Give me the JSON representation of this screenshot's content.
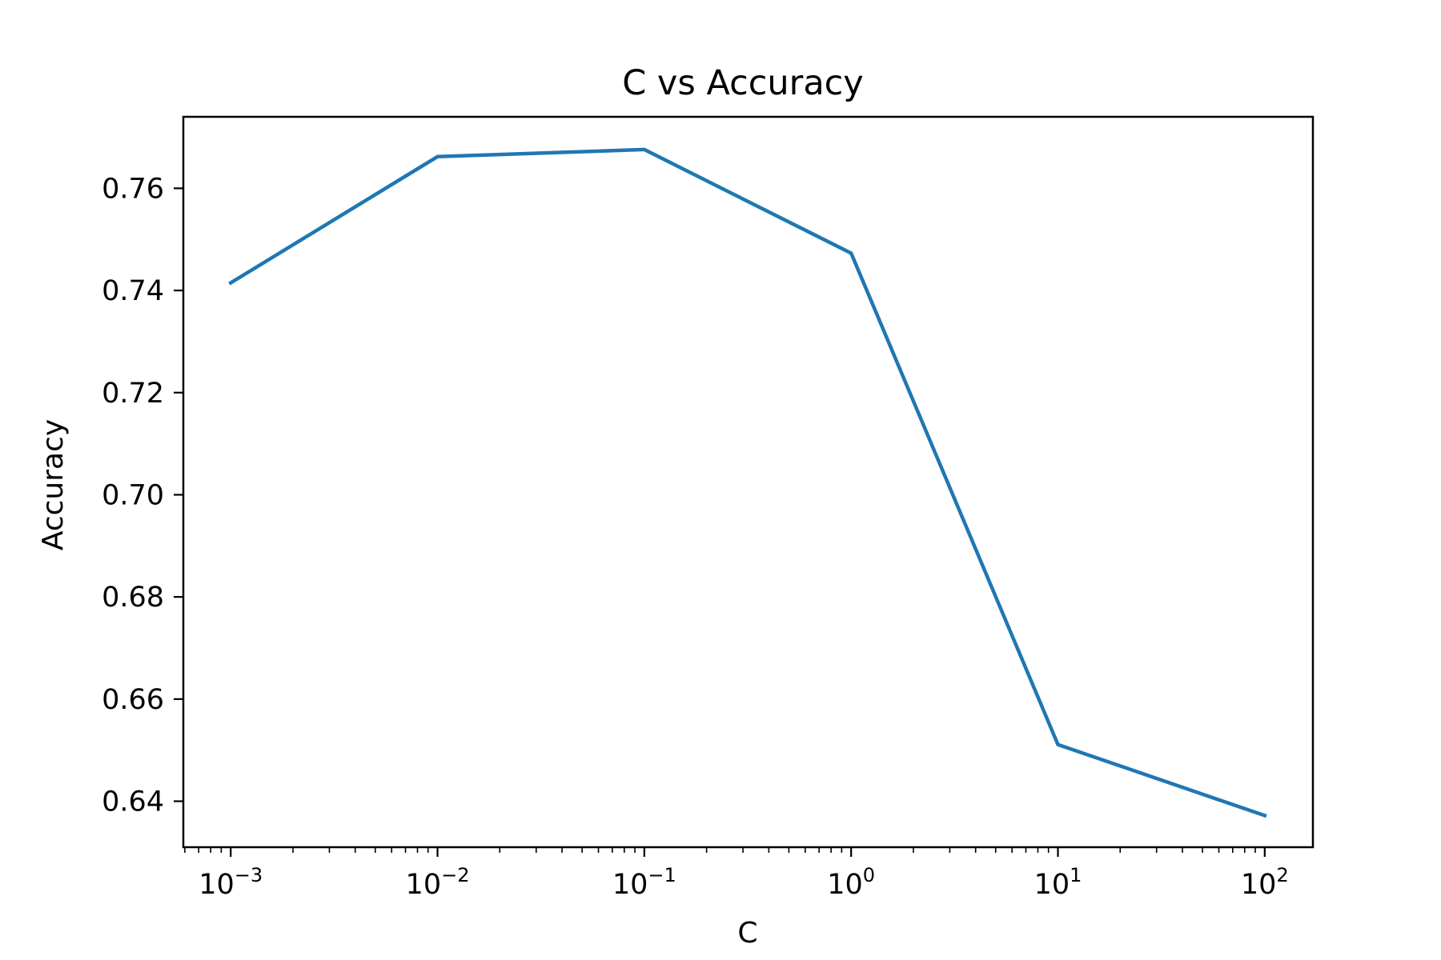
{
  "chart_data": {
    "type": "line",
    "title": "C vs Accuracy",
    "xlabel": "C",
    "ylabel": "Accuracy",
    "xscale": "log",
    "x": [
      0.001,
      0.01,
      0.1,
      1,
      10,
      100
    ],
    "series": [
      {
        "values": [
          0.7415,
          0.7662,
          0.7676,
          0.7473,
          0.6511,
          0.6372
        ],
        "color": "#1f77b4"
      }
    ],
    "xlim": [
      0.00059,
      171
    ],
    "ylim": [
      0.631,
      0.774
    ],
    "x_ticks": [
      {
        "value": 0.001,
        "base": "10",
        "exponent": "−3"
      },
      {
        "value": 0.01,
        "base": "10",
        "exponent": "−2"
      },
      {
        "value": 0.1,
        "base": "10",
        "exponent": "−1"
      },
      {
        "value": 1,
        "base": "10",
        "exponent": "0"
      },
      {
        "value": 10,
        "base": "10",
        "exponent": "1"
      },
      {
        "value": 100,
        "base": "10",
        "exponent": "2"
      }
    ],
    "y_ticks": [
      {
        "value": 0.64,
        "label": "0.64"
      },
      {
        "value": 0.66,
        "label": "0.66"
      },
      {
        "value": 0.68,
        "label": "0.68"
      },
      {
        "value": 0.7,
        "label": "0.70"
      },
      {
        "value": 0.72,
        "label": "0.72"
      },
      {
        "value": 0.74,
        "label": "0.74"
      },
      {
        "value": 0.76,
        "label": "0.76"
      }
    ],
    "grid": false,
    "legend": "none"
  }
}
